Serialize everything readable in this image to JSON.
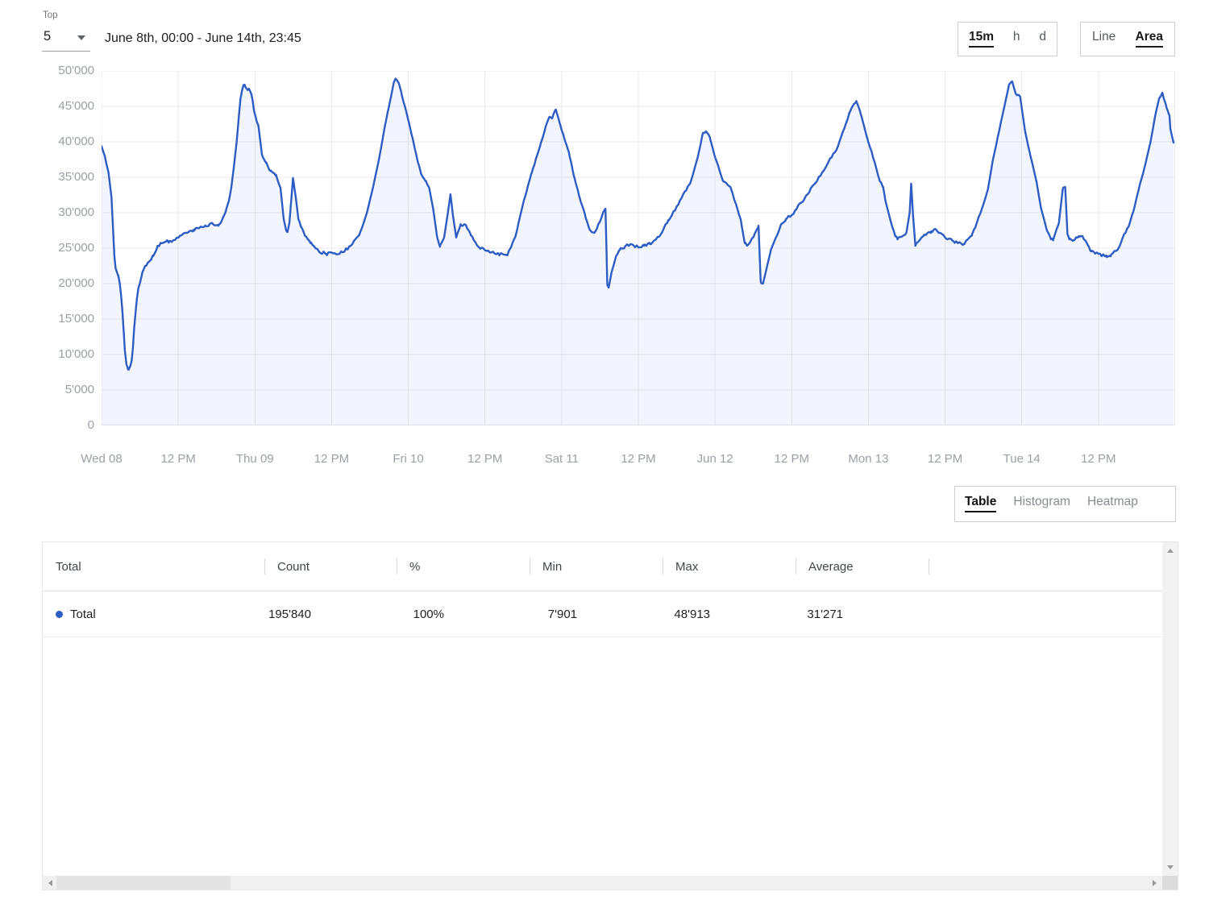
{
  "controls": {
    "top_label": "Top",
    "top_value": "5",
    "date_range": "June 8th, 00:00 - June 14th, 23:45",
    "granularity": {
      "options": [
        "15m",
        "h",
        "d"
      ],
      "selected": "15m"
    },
    "chart_type": {
      "options": [
        "Line",
        "Area"
      ],
      "selected": "Area"
    },
    "view_tabs": {
      "options": [
        "Table",
        "Histogram",
        "Heatmap"
      ],
      "selected": "Table"
    }
  },
  "chart_data": {
    "type": "area",
    "title": "",
    "xlabel": "",
    "ylabel": "",
    "ylim": [
      0,
      50000
    ],
    "x_hours_total": 168,
    "grid": true,
    "grid_color": "#e9eaed",
    "line_color": "#2d5cc5",
    "fill_color": "rgba(45,92,197,0.06)",
    "x_tick_labels": [
      "Wed 08",
      "12 PM",
      "Thu 09",
      "12 PM",
      "Fri 10",
      "12 PM",
      "Sat 11",
      "12 PM",
      "Jun 12",
      "12 PM",
      "Mon 13",
      "12 PM",
      "Tue 14",
      "12 PM"
    ],
    "y_tick_labels": [
      "0",
      "5'000",
      "10'000",
      "15'000",
      "20'000",
      "25'000",
      "30'000",
      "35'000",
      "40'000",
      "45'000",
      "50'000"
    ],
    "series": [
      {
        "name": "Total",
        "points": [
          [
            0,
            39400
          ],
          [
            0.5,
            38000
          ],
          [
            1.1,
            35600
          ],
          [
            1.55,
            32200
          ],
          [
            1.8,
            27600
          ],
          [
            2.0,
            23900
          ],
          [
            2.2,
            22200
          ],
          [
            2.45,
            21500
          ],
          [
            2.65,
            21000
          ],
          [
            2.85,
            20000
          ],
          [
            3.05,
            18400
          ],
          [
            3.25,
            16200
          ],
          [
            3.45,
            13400
          ],
          [
            3.65,
            10600
          ],
          [
            3.9,
            8600
          ],
          [
            4.15,
            7901
          ],
          [
            4.45,
            8300
          ],
          [
            4.7,
            9100
          ],
          [
            4.9,
            10900
          ],
          [
            5.1,
            13600
          ],
          [
            5.35,
            16200
          ],
          [
            5.55,
            18000
          ],
          [
            5.75,
            19300
          ],
          [
            6.0,
            20100
          ],
          [
            6.4,
            21600
          ],
          [
            6.8,
            22500
          ],
          [
            7.45,
            23100
          ],
          [
            8.1,
            23900
          ],
          [
            8.7,
            25100
          ],
          [
            9.35,
            25700
          ],
          [
            10.0,
            25900
          ],
          [
            10.6,
            26000
          ],
          [
            11.25,
            26150
          ],
          [
            11.9,
            26500
          ],
          [
            12.5,
            26800
          ],
          [
            13.1,
            27150
          ],
          [
            13.75,
            27400
          ],
          [
            14.4,
            27600
          ],
          [
            15.0,
            27850
          ],
          [
            15.65,
            28000
          ],
          [
            16.3,
            28100
          ],
          [
            16.9,
            28400
          ],
          [
            17.35,
            28500
          ],
          [
            17.75,
            28200
          ],
          [
            18.2,
            28300
          ],
          [
            18.6,
            28500
          ],
          [
            19.0,
            29300
          ],
          [
            19.45,
            30200
          ],
          [
            19.9,
            31600
          ],
          [
            20.3,
            33500
          ],
          [
            20.7,
            36400
          ],
          [
            21.15,
            40100
          ],
          [
            21.55,
            44300
          ],
          [
            21.75,
            46100
          ],
          [
            22.0,
            47300
          ],
          [
            22.2,
            47950
          ],
          [
            22.4,
            48050
          ],
          [
            22.6,
            47600
          ],
          [
            22.85,
            47300
          ],
          [
            23.05,
            47500
          ],
          [
            23.25,
            47150
          ],
          [
            23.45,
            46700
          ],
          [
            23.65,
            45800
          ],
          [
            23.85,
            44400
          ],
          [
            24.2,
            43200
          ],
          [
            24.55,
            42300
          ],
          [
            25.1,
            38200
          ],
          [
            25.8,
            37050
          ],
          [
            26.4,
            35900
          ],
          [
            27.3,
            35350
          ],
          [
            28.0,
            33500
          ],
          [
            28.5,
            29100
          ],
          [
            28.9,
            27450
          ],
          [
            29.1,
            27270
          ],
          [
            29.4,
            28600
          ],
          [
            29.7,
            32000
          ],
          [
            29.95,
            34890
          ],
          [
            30.4,
            32160
          ],
          [
            30.8,
            29100
          ],
          [
            31.2,
            28000
          ],
          [
            31.8,
            26800
          ],
          [
            32.7,
            25700
          ],
          [
            34.0,
            24550
          ],
          [
            35.2,
            24200
          ],
          [
            36.5,
            24300
          ],
          [
            37.7,
            24420
          ],
          [
            39.0,
            25340
          ],
          [
            40.3,
            26800
          ],
          [
            41.5,
            29900
          ],
          [
            42.4,
            33300
          ],
          [
            43.4,
            37500
          ],
          [
            44.4,
            42500
          ],
          [
            45.2,
            46000
          ],
          [
            45.7,
            48200
          ],
          [
            46.0,
            48913
          ],
          [
            46.5,
            48300
          ],
          [
            46.9,
            47000
          ],
          [
            47.3,
            45500
          ],
          [
            47.7,
            44200
          ],
          [
            48.1,
            42700
          ],
          [
            48.8,
            40000
          ],
          [
            49.4,
            37500
          ],
          [
            50.0,
            35500
          ],
          [
            50.65,
            34500
          ],
          [
            51.3,
            33400
          ],
          [
            51.9,
            30500
          ],
          [
            52.5,
            26600
          ],
          [
            52.95,
            25200
          ],
          [
            53.6,
            26500
          ],
          [
            54.2,
            30000
          ],
          [
            54.6,
            32600
          ],
          [
            55.0,
            29500
          ],
          [
            55.5,
            26500
          ],
          [
            56.2,
            28400
          ],
          [
            57.0,
            28300
          ],
          [
            57.8,
            26800
          ],
          [
            59.1,
            25100
          ],
          [
            60.0,
            24700
          ],
          [
            61.0,
            24400
          ],
          [
            62.3,
            24100
          ],
          [
            63.5,
            24000
          ],
          [
            64.2,
            25400
          ],
          [
            64.8,
            26800
          ],
          [
            66.1,
            31800
          ],
          [
            67.3,
            35570
          ],
          [
            68.6,
            39320
          ],
          [
            69.5,
            42160
          ],
          [
            70.1,
            43520
          ],
          [
            70.5,
            43300
          ],
          [
            71.1,
            44550
          ],
          [
            71.7,
            42600
          ],
          [
            72.1,
            41400
          ],
          [
            73.1,
            38640
          ],
          [
            73.9,
            35230
          ],
          [
            74.8,
            32160
          ],
          [
            75.7,
            29550
          ],
          [
            76.4,
            27600
          ],
          [
            77.1,
            27160
          ],
          [
            78.0,
            28750
          ],
          [
            78.6,
            30230
          ],
          [
            78.85,
            30570
          ],
          [
            79.15,
            19800
          ],
          [
            79.35,
            19430
          ],
          [
            79.8,
            21590
          ],
          [
            80.5,
            23860
          ],
          [
            81.1,
            24770
          ],
          [
            82.35,
            25450
          ],
          [
            83.6,
            25230
          ],
          [
            84.0,
            25110
          ],
          [
            84.9,
            25340
          ],
          [
            85.8,
            25570
          ],
          [
            86.5,
            26100
          ],
          [
            87.4,
            26800
          ],
          [
            88.7,
            28980
          ],
          [
            89.9,
            30680
          ],
          [
            90.8,
            32160
          ],
          [
            92.1,
            34100
          ],
          [
            93.3,
            37840
          ],
          [
            94.1,
            41250
          ],
          [
            94.6,
            41480
          ],
          [
            95.2,
            40600
          ],
          [
            96.0,
            37840
          ],
          [
            97.3,
            34430
          ],
          [
            98.4,
            33640
          ],
          [
            99.2,
            31360
          ],
          [
            100.0,
            29100
          ],
          [
            100.65,
            25700
          ],
          [
            101.0,
            25340
          ],
          [
            101.9,
            26480
          ],
          [
            102.8,
            28180
          ],
          [
            103.15,
            20300
          ],
          [
            103.5,
            20000
          ],
          [
            104.1,
            22300
          ],
          [
            104.7,
            24550
          ],
          [
            106.35,
            28400
          ],
          [
            107.1,
            29100
          ],
          [
            108.0,
            29670
          ],
          [
            110.1,
            32160
          ],
          [
            112.7,
            35570
          ],
          [
            115.2,
            39320
          ],
          [
            117.3,
            44660
          ],
          [
            118.1,
            45750
          ],
          [
            118.7,
            44300
          ],
          [
            119.3,
            42300
          ],
          [
            119.85,
            40450
          ],
          [
            121.0,
            37050
          ],
          [
            121.8,
            34430
          ],
          [
            122.3,
            33640
          ],
          [
            122.65,
            31800
          ],
          [
            123.5,
            28750
          ],
          [
            124.2,
            26700
          ],
          [
            124.55,
            26250
          ],
          [
            125.2,
            26600
          ],
          [
            125.95,
            27200
          ],
          [
            126.45,
            30000
          ],
          [
            126.7,
            34100
          ],
          [
            127.0,
            29500
          ],
          [
            127.35,
            25340
          ],
          [
            128.6,
            26700
          ],
          [
            129.85,
            27400
          ],
          [
            130.6,
            27600
          ],
          [
            131.5,
            27000
          ],
          [
            132.4,
            26250
          ],
          [
            133.1,
            26100
          ],
          [
            134.0,
            25700
          ],
          [
            134.9,
            25570
          ],
          [
            136.2,
            26800
          ],
          [
            136.9,
            28400
          ],
          [
            137.8,
            30680
          ],
          [
            138.7,
            33300
          ],
          [
            139.4,
            37050
          ],
          [
            140.3,
            40900
          ],
          [
            141.2,
            44660
          ],
          [
            142.0,
            48070
          ],
          [
            142.5,
            48520
          ],
          [
            143.1,
            46700
          ],
          [
            143.75,
            46360
          ],
          [
            144.5,
            41590
          ],
          [
            145.4,
            37840
          ],
          [
            146.3,
            34430
          ],
          [
            147.0,
            30680
          ],
          [
            147.9,
            27600
          ],
          [
            148.55,
            26250
          ],
          [
            148.9,
            26100
          ],
          [
            149.8,
            28500
          ],
          [
            150.4,
            33300
          ],
          [
            150.8,
            33640
          ],
          [
            151.15,
            27000
          ],
          [
            151.45,
            26250
          ],
          [
            152.05,
            26100
          ],
          [
            152.95,
            26700
          ],
          [
            153.6,
            26480
          ],
          [
            154.2,
            25700
          ],
          [
            154.85,
            24550
          ],
          [
            156.0,
            24200
          ],
          [
            157.3,
            23750
          ],
          [
            157.9,
            23860
          ],
          [
            159.2,
            25100
          ],
          [
            159.8,
            26480
          ],
          [
            160.7,
            28000
          ],
          [
            161.6,
            30680
          ],
          [
            162.3,
            33300
          ],
          [
            163.2,
            36360
          ],
          [
            164.1,
            39770
          ],
          [
            164.85,
            43520
          ],
          [
            165.5,
            46140
          ],
          [
            166.0,
            46930
          ],
          [
            166.7,
            44660
          ],
          [
            167.1,
            43750
          ],
          [
            167.25,
            41820
          ],
          [
            167.75,
            39890
          ]
        ]
      }
    ]
  },
  "table": {
    "columns": [
      "Total",
      "Count",
      "%",
      "Min",
      "Max",
      "Average"
    ],
    "rows": [
      {
        "label": "Total",
        "color": "#2d5cc5",
        "values": [
          "195'840",
          "100%",
          "7'901",
          "48'913",
          "31'271"
        ]
      }
    ]
  }
}
